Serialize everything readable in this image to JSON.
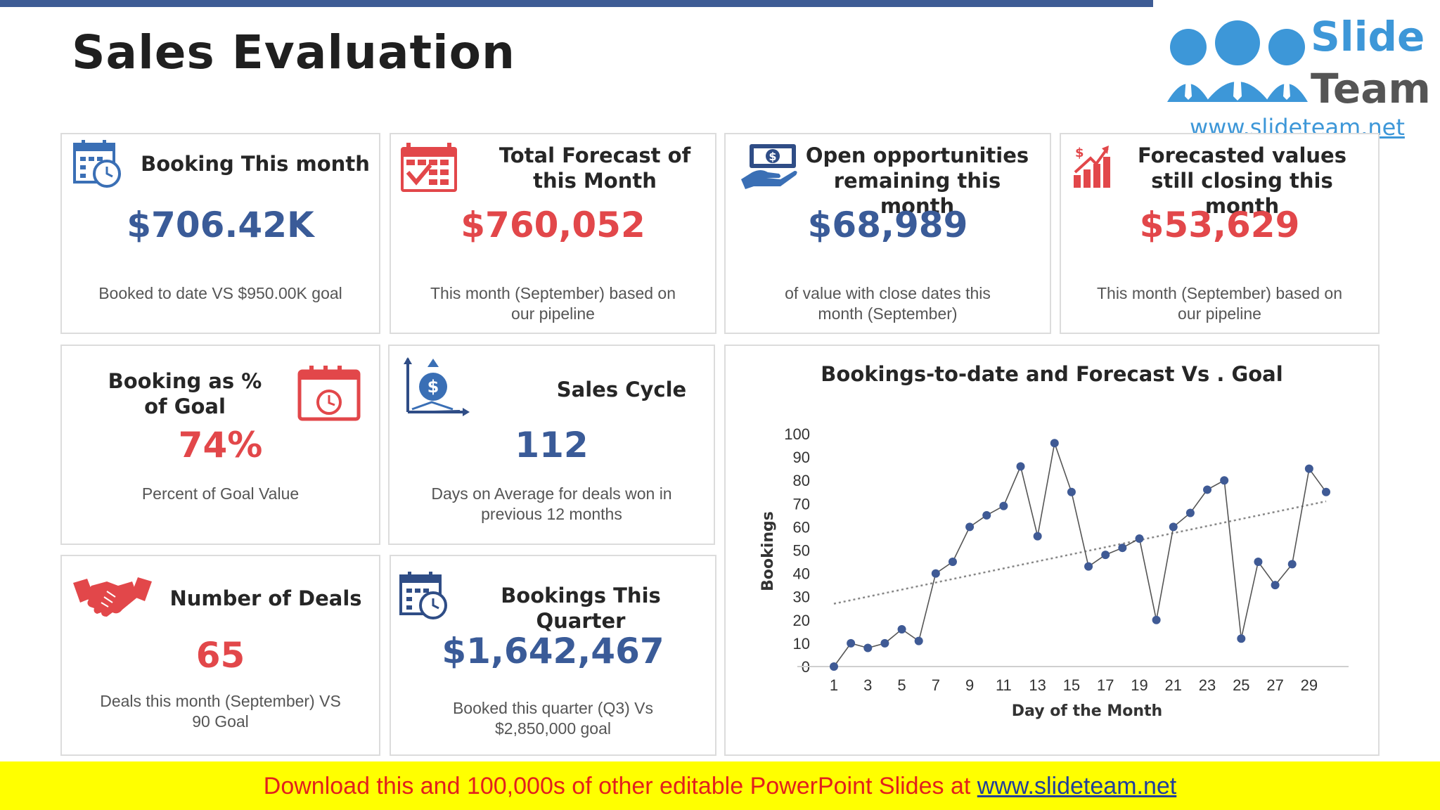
{
  "page_title": "Sales Evaluation",
  "logo": {
    "line1": "Slide",
    "line2": "Team",
    "url": "www.slideteam.net"
  },
  "cards": {
    "booking_month": {
      "title": "Booking This month",
      "value": "$706.42K",
      "desc": "Booked to date VS $950.00K goal",
      "icon": "calendar-clock-icon"
    },
    "total_forecast": {
      "title": "Total Forecast of this Month",
      "value": "$760,052",
      "desc": "This month (September) based on our pipeline",
      "icon": "calendar-check-icon"
    },
    "open_opps": {
      "title": "Open opportunities remaining this month",
      "value": "$68,989",
      "desc": "of value with close dates this month (September)",
      "icon": "money-hand-icon"
    },
    "forecasted_closing": {
      "title": "Forecasted values still closing this month",
      "value": "$53,629",
      "desc": "This month (September) based on our pipeline",
      "icon": "growth-chart-icon"
    },
    "booking_pct": {
      "title": "Booking as % of Goal",
      "value": "74%",
      "desc": "Percent of Goal Value",
      "icon": "calendar-clock-icon"
    },
    "sales_cycle": {
      "title": "Sales Cycle",
      "value": "112",
      "desc": "Days on Average for deals won in previous 12 months",
      "icon": "dollar-growth-icon"
    },
    "num_deals": {
      "title": "Number of Deals",
      "value": "65",
      "desc": "Deals this month (September) VS 90 Goal",
      "icon": "handshake-icon"
    },
    "bookings_quarter": {
      "title": "Bookings This Quarter",
      "value": "$1,642,467",
      "desc": "Booked this quarter (Q3) Vs $2,850,000 goal",
      "icon": "calendar-clock-icon"
    }
  },
  "colors": {
    "blue": "#3a5b98",
    "red": "#e2474a",
    "line": "#555555",
    "point": "#3f5a95",
    "trend": "#888888"
  },
  "chart_data": {
    "type": "line",
    "title": "Bookings-to-date and Forecast Vs . Goal",
    "xlabel": "Day of the Month",
    "ylabel": "Bookings",
    "xlim": [
      1,
      30
    ],
    "ylim": [
      0,
      100
    ],
    "yticks": [
      0,
      10,
      20,
      30,
      40,
      50,
      60,
      70,
      80,
      90,
      100
    ],
    "xticks": [
      1,
      3,
      5,
      7,
      9,
      11,
      13,
      15,
      17,
      19,
      21,
      23,
      25,
      27,
      29
    ],
    "series": [
      {
        "x": [
          1,
          2,
          3,
          4,
          5,
          6,
          7,
          8,
          9,
          10,
          11,
          12,
          13,
          14,
          15,
          16,
          17,
          18,
          19,
          20,
          21,
          22,
          23,
          24,
          25,
          26,
          27,
          28,
          29,
          30
        ],
        "values": [
          0,
          10,
          8,
          10,
          16,
          11,
          40,
          45,
          60,
          65,
          69,
          86,
          56,
          96,
          75,
          43,
          48,
          51,
          55,
          20,
          60,
          66,
          76,
          80,
          12,
          45,
          35,
          44,
          85,
          75
        ]
      }
    ],
    "trendline": {
      "style": "dotted linear",
      "from": [
        1,
        27
      ],
      "to": [
        30,
        71
      ]
    },
    "grid": false
  },
  "footer": {
    "text": "Download this and 100,000s of other editable PowerPoint Slides at ",
    "link": "www.slideteam.net"
  }
}
